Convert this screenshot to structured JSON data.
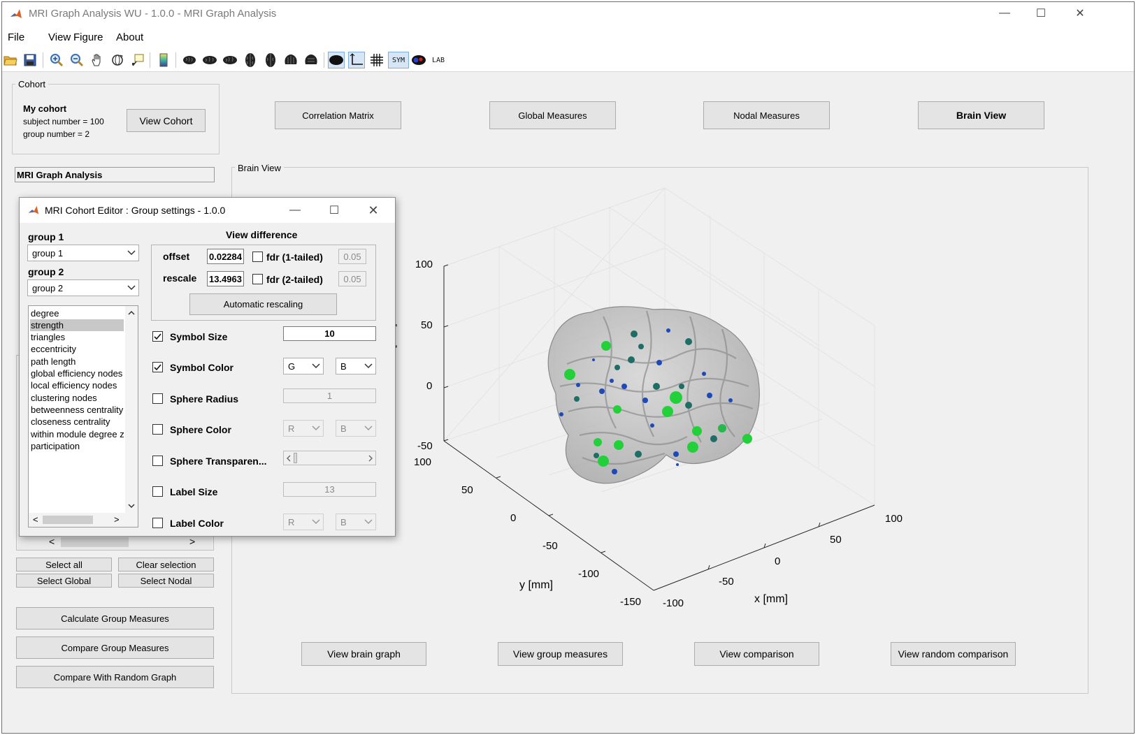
{
  "window": {
    "title": "MRI Graph Analysis WU - 1.0.0 - MRI Graph Analysis",
    "minimize": "—",
    "maximize": "☐",
    "close": "✕"
  },
  "menu": [
    "File",
    "View",
    "Figure",
    "About"
  ],
  "toolbar": {
    "icons": [
      "open-icon",
      "save-icon",
      "zoom-in-icon",
      "zoom-out-icon",
      "pan-icon",
      "rotate-icon",
      "data-cursor-icon",
      "colorbar-icon",
      "brain-view-1-icon",
      "brain-view-2-icon",
      "brain-view-3-icon",
      "brain-view-4-icon",
      "brain-view-5-icon",
      "brain-view-6-icon",
      "brain-view-7-icon",
      "brain-toggle-icon",
      "axis-toggle-icon",
      "grid-toggle-icon",
      "sym-toggle-icon",
      "mask-icon",
      "lab-toggle-icon"
    ],
    "sym_label": "SYM",
    "lab_label": "LAB"
  },
  "cohort": {
    "panel_title": "Cohort",
    "name": "My cohort",
    "subject_number": "subject number = 100",
    "group_number": "group number = 2",
    "view_button": "View Cohort"
  },
  "top_buttons": [
    "Correlation Matrix",
    "Global Measures",
    "Nodal Measures",
    "Brain View"
  ],
  "analysis_title": "MRI Graph Analysis",
  "left_bottom": {
    "select_all": "Select all",
    "clear_selection": "Clear selection",
    "select_global": "Select Global",
    "select_nodal": "Select Nodal",
    "calculate": "Calculate Group Measures",
    "compare": "Compare Group Measures",
    "compare_random": "Compare With Random Graph",
    "scroll_left": "<",
    "scroll_right": ">"
  },
  "brain_view": {
    "panel_title": "Brain View",
    "z_label": "z [mm]",
    "y_label": "y [mm]",
    "x_label": "x [mm]",
    "z_ticks": [
      "100",
      "50",
      "0",
      "-50"
    ],
    "y_ticks": [
      "100",
      "50",
      "0",
      "-50",
      "-100",
      "-150"
    ],
    "x_ticks": [
      "100",
      "50",
      "0",
      "-50",
      "-100"
    ]
  },
  "bottom_buttons": [
    "View brain graph",
    "View group measures",
    "View comparison",
    "View random comparison"
  ],
  "dialog": {
    "title": "MRI Cohort Editor : Group settings - 1.0.0",
    "group1_label": "group 1",
    "group1_value": "group 1",
    "group2_label": "group 2",
    "group2_value": "group 2",
    "measures": [
      "degree",
      "strength",
      "triangles",
      "eccentricity",
      "path length",
      "global efficiency nodes",
      "local efficiency nodes",
      "clustering nodes",
      "betweenness centrality",
      "closeness centrality",
      "within module degree z",
      "participation"
    ],
    "selected_measure": "strength",
    "view_difference": "View difference",
    "offset_label": "offset",
    "offset_value": "0.02284",
    "rescale_label": "rescale",
    "rescale_value": "13.4963",
    "fdr1_label": "fdr (1-tailed)",
    "fdr1_value": "0.05",
    "fdr2_label": "fdr (2-tailed)",
    "fdr2_value": "0.05",
    "auto_rescale": "Automatic rescaling",
    "symbol_size_label": "Symbol Size",
    "symbol_size_value": "10",
    "symbol_color_label": "Symbol Color",
    "symbol_color_1": "G",
    "symbol_color_2": "B",
    "sphere_radius_label": "Sphere Radius",
    "sphere_radius_value": "1",
    "sphere_color_label": "Sphere Color",
    "sphere_color_1": "R",
    "sphere_color_2": "B",
    "sphere_transparency_label": "Sphere Transparen...",
    "label_size_label": "Label Size",
    "label_size_value": "13",
    "label_color_label": "Label Color",
    "label_color_1": "R",
    "label_color_2": "B",
    "list_scroll_left": "<",
    "list_scroll_right": ">",
    "list_scroll_up": "^",
    "list_scroll_down": "v"
  },
  "colors": {
    "node_green": "#22d13a",
    "node_teal": "#1e6e66",
    "node_blue": "#1f49b8",
    "brain_gray": "#b5b5b5"
  }
}
